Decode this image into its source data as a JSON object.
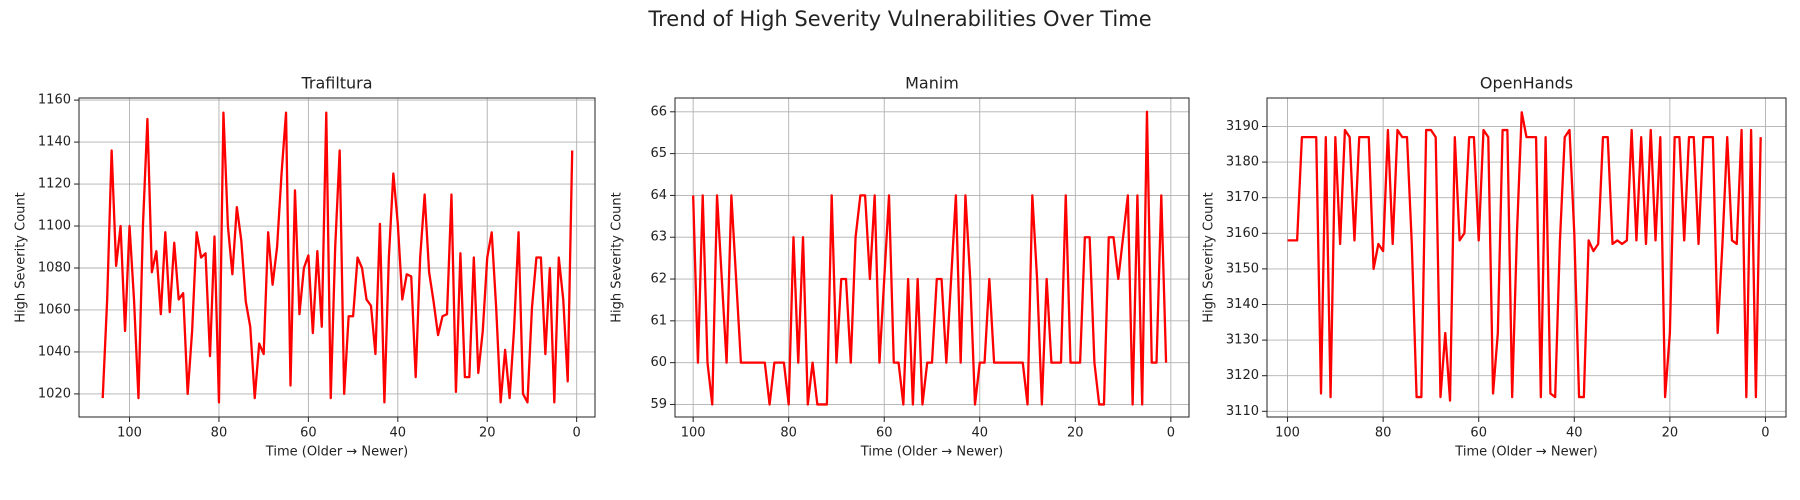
{
  "title": "Trend of High Severity Vulnerabilities Over Time",
  "chart_data": [
    {
      "type": "line",
      "title": "Trafiltura",
      "xlabel": "Time (Older → Newer)",
      "ylabel": "High Severity Count",
      "color": "#ff0000",
      "grid": true,
      "xlim": [
        111.3,
        -4.1
      ],
      "xticks": [
        100,
        80,
        60,
        40,
        20,
        0
      ],
      "ylim": [
        1009,
        1161
      ],
      "yticks": [
        1020,
        1040,
        1060,
        1080,
        1100,
        1120,
        1140,
        1160
      ],
      "x": [
        106,
        105,
        104,
        103,
        102,
        101,
        100,
        99,
        98,
        97,
        96,
        95,
        94,
        93,
        92,
        91,
        90,
        89,
        88,
        87,
        86,
        85,
        84,
        83,
        82,
        81,
        80,
        79,
        78,
        77,
        76,
        75,
        74,
        73,
        72,
        71,
        70,
        69,
        68,
        67,
        66,
        65,
        64,
        63,
        62,
        61,
        60,
        59,
        58,
        57,
        56,
        55,
        54,
        53,
        52,
        51,
        50,
        49,
        48,
        47,
        46,
        45,
        44,
        43,
        42,
        41,
        40,
        39,
        38,
        37,
        36,
        35,
        34,
        33,
        32,
        31,
        30,
        29,
        28,
        27,
        26,
        25,
        24,
        23,
        22,
        21,
        20,
        19,
        18,
        17,
        16,
        15,
        14,
        13,
        12,
        11,
        10,
        9,
        8,
        7,
        6,
        5,
        4,
        3,
        2,
        1
      ],
      "values": [
        1018,
        1065,
        1136,
        1081,
        1100,
        1050,
        1100,
        1065,
        1018,
        1100,
        1151,
        1078,
        1088,
        1058,
        1097,
        1059,
        1092,
        1065,
        1068,
        1020,
        1050,
        1097,
        1085,
        1087,
        1038,
        1095,
        1016,
        1154,
        1100,
        1077,
        1109,
        1093,
        1064,
        1052,
        1018,
        1044,
        1039,
        1097,
        1072,
        1090,
        1125,
        1154,
        1024,
        1117,
        1058,
        1080,
        1086,
        1049,
        1088,
        1052,
        1154,
        1018,
        1090,
        1136,
        1020,
        1057,
        1057,
        1085,
        1080,
        1065,
        1062,
        1039,
        1101,
        1016,
        1085,
        1125,
        1101,
        1065,
        1077,
        1076,
        1028,
        1085,
        1115,
        1078,
        1064,
        1048,
        1057,
        1058,
        1115,
        1021,
        1087,
        1028,
        1028,
        1085,
        1030,
        1050,
        1085,
        1097,
        1061,
        1016,
        1041,
        1018,
        1051,
        1097,
        1020,
        1016,
        1061,
        1085,
        1085,
        1039,
        1080,
        1016,
        1085,
        1065,
        1026,
        1136
      ]
    },
    {
      "type": "line",
      "title": "Manim",
      "xlabel": "Time (Older → Newer)",
      "ylabel": "High Severity Count",
      "color": "#ff0000",
      "grid": true,
      "xlim": [
        103.8,
        -3.8
      ],
      "xticks": [
        100,
        80,
        60,
        40,
        20,
        0
      ],
      "ylim": [
        58.7,
        66.33
      ],
      "yticks": [
        59,
        60,
        61,
        62,
        63,
        64,
        65,
        66
      ],
      "x": [
        100,
        99,
        98,
        97,
        96,
        95,
        94,
        93,
        92,
        91,
        90,
        89,
        88,
        87,
        86,
        85,
        84,
        83,
        82,
        81,
        80,
        79,
        78,
        77,
        76,
        75,
        74,
        73,
        72,
        71,
        70,
        69,
        68,
        67,
        66,
        65,
        64,
        63,
        62,
        61,
        60,
        59,
        58,
        57,
        56,
        55,
        54,
        53,
        52,
        51,
        50,
        49,
        48,
        47,
        46,
        45,
        44,
        43,
        42,
        41,
        40,
        39,
        38,
        37,
        36,
        35,
        34,
        33,
        32,
        31,
        30,
        29,
        28,
        27,
        26,
        25,
        24,
        23,
        22,
        21,
        20,
        19,
        18,
        17,
        16,
        15,
        14,
        13,
        12,
        11,
        10,
        9,
        8,
        7,
        6,
        5,
        4,
        3,
        2,
        1
      ],
      "values": [
        64,
        60,
        64,
        60,
        59,
        64,
        62,
        60,
        64,
        62,
        60,
        60,
        60,
        60,
        60,
        60,
        59,
        60,
        60,
        60,
        59,
        63,
        60,
        63,
        59,
        60,
        59,
        59,
        59,
        64,
        60,
        62,
        62,
        60,
        63,
        64,
        64,
        62,
        64,
        60,
        62,
        64,
        60,
        60,
        59,
        62,
        59,
        62,
        59,
        60,
        60,
        62,
        62,
        60,
        62,
        64,
        60,
        64,
        62,
        59,
        60,
        60,
        62,
        60,
        60,
        60,
        60,
        60,
        60,
        60,
        59,
        64,
        62,
        59,
        62,
        60,
        60,
        60,
        64,
        60,
        60,
        60,
        63,
        63,
        60,
        59,
        59,
        63,
        63,
        62,
        63,
        64,
        59,
        64,
        59,
        66,
        60,
        60,
        64,
        60
      ]
    },
    {
      "type": "line",
      "title": "OpenHands",
      "xlabel": "Time (Older → Newer)",
      "ylabel": "High Severity Count",
      "color": "#ff0000",
      "grid": true,
      "xlim": [
        104.3,
        -4.3
      ],
      "xticks": [
        100,
        80,
        60,
        40,
        20,
        0
      ],
      "ylim": [
        3108.4,
        3198
      ],
      "yticks": [
        3110,
        3120,
        3130,
        3140,
        3150,
        3160,
        3170,
        3180,
        3190
      ],
      "x": [
        100,
        99,
        98,
        97,
        96,
        95,
        94,
        93,
        92,
        91,
        90,
        89,
        88,
        87,
        86,
        85,
        84,
        83,
        82,
        81,
        80,
        79,
        78,
        77,
        76,
        75,
        74,
        73,
        72,
        71,
        70,
        69,
        68,
        67,
        66,
        65,
        64,
        63,
        62,
        61,
        60,
        59,
        58,
        57,
        56,
        55,
        54,
        53,
        52,
        51,
        50,
        49,
        48,
        47,
        46,
        45,
        44,
        43,
        42,
        41,
        40,
        39,
        38,
        37,
        36,
        35,
        34,
        33,
        32,
        31,
        30,
        29,
        28,
        27,
        26,
        25,
        24,
        23,
        22,
        21,
        20,
        19,
        18,
        17,
        16,
        15,
        14,
        13,
        12,
        11,
        10,
        9,
        8,
        7,
        6,
        5,
        4,
        3,
        2,
        1
      ],
      "values": [
        3158,
        3158,
        3158,
        3187,
        3187,
        3187,
        3187,
        3115,
        3187,
        3114,
        3187,
        3157,
        3189,
        3187,
        3158,
        3187,
        3187,
        3187,
        3150,
        3157,
        3155,
        3189,
        3157,
        3189,
        3187,
        3187,
        3157,
        3114,
        3114,
        3189,
        3189,
        3187,
        3114,
        3132,
        3113,
        3187,
        3158,
        3160,
        3187,
        3187,
        3158,
        3189,
        3187,
        3115,
        3132,
        3189,
        3189,
        3114,
        3160,
        3194,
        3187,
        3187,
        3187,
        3114,
        3187,
        3115,
        3114,
        3158,
        3187,
        3189,
        3160,
        3114,
        3114,
        3158,
        3155,
        3157,
        3187,
        3187,
        3157,
        3158,
        3157,
        3158,
        3189,
        3158,
        3187,
        3157,
        3189,
        3158,
        3187,
        3114,
        3132,
        3187,
        3187,
        3158,
        3187,
        3187,
        3157,
        3187,
        3187,
        3187,
        3132,
        3157,
        3187,
        3158,
        3157,
        3189,
        3114,
        3189,
        3114,
        3187
      ]
    }
  ]
}
